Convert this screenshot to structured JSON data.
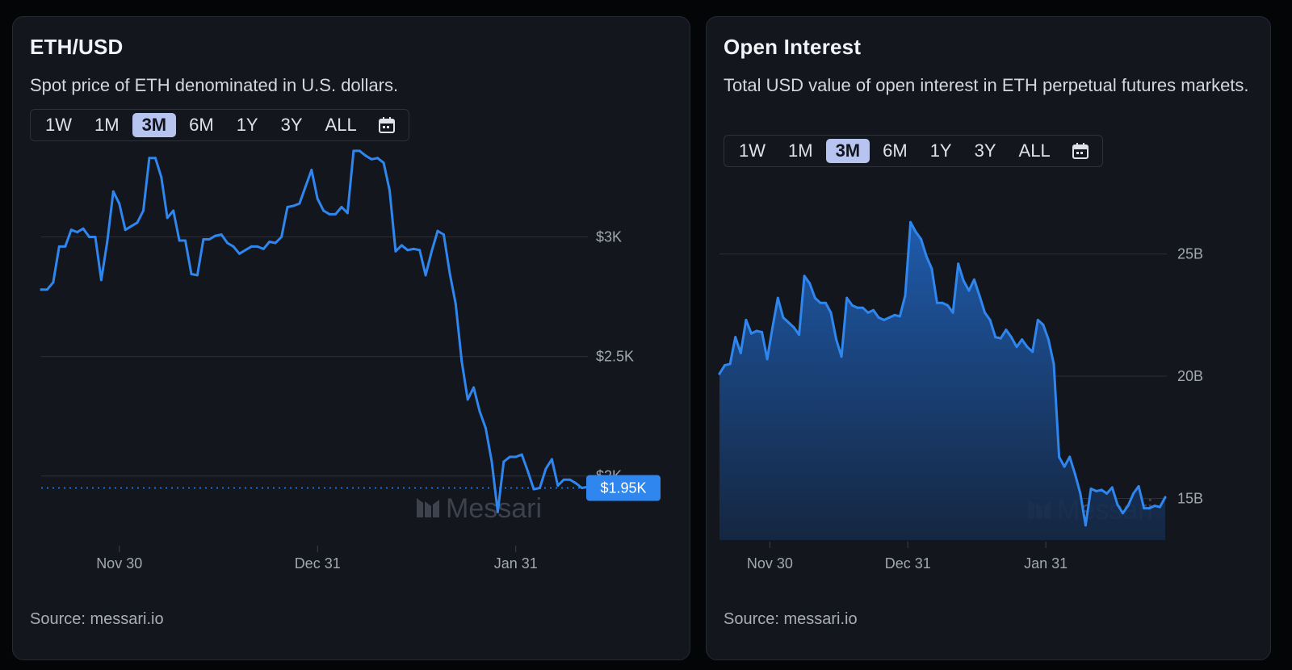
{
  "range_buttons": [
    "1W",
    "1M",
    "3M",
    "6M",
    "1Y",
    "3Y",
    "ALL"
  ],
  "active_range": "3M",
  "colors": {
    "line": "#2f86ee",
    "active_range_bg": "#b7c4ef",
    "badge": "#2f86ee",
    "grid": "#2c3039"
  },
  "watermark": "Messari",
  "eth": {
    "title": "ETH/USD",
    "subtitle": "Spot price of ETH denominated in U.S. dollars.",
    "source": "Source: messari.io",
    "current_label": "$1.95K"
  },
  "oi": {
    "title": "Open Interest",
    "subtitle": "Total USD value of open interest in ETH perpetual futures markets.",
    "source": "Source: messari.io"
  },
  "chart_data": [
    {
      "type": "line",
      "title": "ETH/USD",
      "x_ticks": [
        "Nov 30",
        "Dec 31",
        "Jan 31"
      ],
      "y_ticks": [
        {
          "value": 3000,
          "label": "$3K"
        },
        {
          "value": 2500,
          "label": "$2.5K"
        },
        {
          "value": 2000,
          "label": "$2K"
        }
      ],
      "ylim": [
        1810,
        3380
      ],
      "current_value": 1950,
      "grid": true,
      "series": [
        {
          "values": [
            2780,
            2780,
            2810,
            2960,
            2960,
            3030,
            3020,
            3035,
            3000,
            3000,
            2820,
            2980,
            3190,
            3140,
            3030,
            3045,
            3060,
            3110,
            3330,
            3330,
            3250,
            3080,
            3110,
            2985,
            2985,
            2845,
            2840,
            2990,
            2990,
            3005,
            3010,
            2975,
            2960,
            2930,
            2945,
            2960,
            2960,
            2950,
            2980,
            2975,
            3000,
            3125,
            3130,
            3140,
            3210,
            3280,
            3160,
            3110,
            3095,
            3095,
            3125,
            3100,
            3360,
            3360,
            3340,
            3325,
            3330,
            3310,
            3195,
            2940,
            2965,
            2945,
            2950,
            2945,
            2840,
            2940,
            3025,
            3010,
            2850,
            2720,
            2480,
            2320,
            2370,
            2270,
            2200,
            2060,
            1850,
            2060,
            2080,
            2080,
            2090,
            2020,
            1945,
            1950,
            2030,
            2070,
            1960,
            1985,
            1985,
            1970,
            1950,
            1955
          ]
        }
      ]
    },
    {
      "type": "area",
      "title": "Open Interest",
      "x_ticks": [
        "Nov 30",
        "Dec 31",
        "Jan 31"
      ],
      "y_ticks": [
        {
          "value": 25,
          "label": "25B"
        },
        {
          "value": 20,
          "label": "20B"
        },
        {
          "value": 15,
          "label": "15B"
        }
      ],
      "units": "B",
      "ylim": [
        13.3,
        27.1
      ],
      "grid": true,
      "series": [
        {
          "values": [
            20.1,
            20.45,
            20.5,
            21.6,
            20.95,
            22.3,
            21.75,
            21.85,
            21.8,
            20.7,
            22.0,
            23.2,
            22.4,
            22.2,
            22.0,
            21.7,
            24.1,
            23.8,
            23.2,
            23.0,
            23.0,
            22.6,
            21.5,
            20.8,
            23.2,
            22.9,
            22.8,
            22.8,
            22.6,
            22.7,
            22.4,
            22.3,
            22.4,
            22.5,
            22.45,
            23.3,
            26.3,
            25.9,
            25.6,
            24.9,
            24.4,
            23.0,
            23.0,
            22.9,
            22.6,
            24.6,
            23.9,
            23.5,
            23.95,
            23.3,
            22.6,
            22.3,
            21.6,
            21.55,
            21.9,
            21.6,
            21.2,
            21.5,
            21.2,
            21.0,
            22.3,
            22.1,
            21.5,
            20.5,
            16.7,
            16.3,
            16.7,
            16.0,
            15.2,
            13.9,
            15.4,
            15.3,
            15.35,
            15.2,
            15.45,
            14.75,
            14.4,
            14.7,
            15.2,
            15.5,
            14.6,
            14.6,
            14.7,
            14.65,
            15.05
          ]
        }
      ]
    }
  ]
}
